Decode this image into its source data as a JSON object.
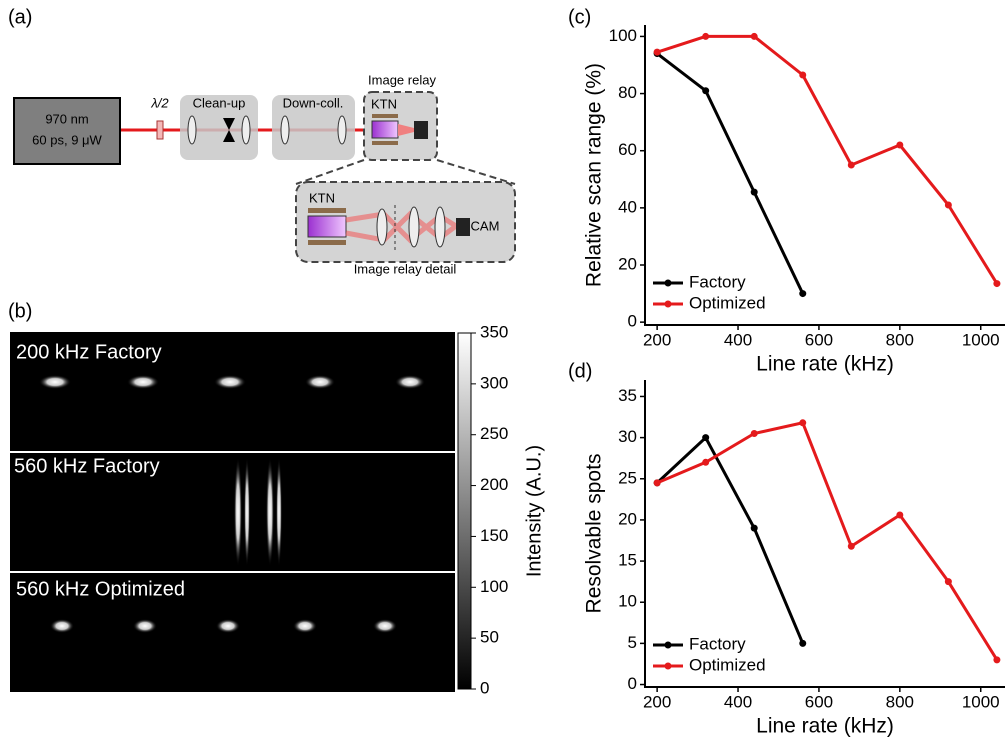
{
  "panel_labels": [
    "(a)",
    "(b)",
    "(c)",
    "(d)"
  ],
  "diagram": {
    "source": [
      "970 nm",
      "60 ps, 9 μW"
    ],
    "waveplate": "λ/2",
    "cleanup": "Clean-up",
    "downcoll": "Down-coll.",
    "relay": "Image relay",
    "ktn": "KTN",
    "detail_ktn": "KTN",
    "cam": "CAM",
    "detail": "Image relay detail"
  },
  "images": {
    "panels": [
      "200 kHz Factory",
      "560 kHz Factory",
      "560 kHz Optimized"
    ],
    "colorbar": {
      "label": "Intensity (A.U.)",
      "lim": [
        0,
        350
      ],
      "ticks": [
        0,
        50,
        100,
        150,
        200,
        250,
        300,
        350
      ]
    }
  },
  "chart_data": [
    {
      "type": "line",
      "x_label": "Line rate (kHz)",
      "y_label": "Relative scan range (%)",
      "legend": "lower left",
      "xlim": [
        170,
        1060
      ],
      "ylim": [
        -1,
        104
      ],
      "xticks": [
        200,
        400,
        600,
        800,
        1000
      ],
      "yticks": [
        0,
        20,
        40,
        60,
        80,
        100
      ],
      "series": [
        {
          "name": "Factory",
          "color": "#000000",
          "x": [
            200,
            320,
            440,
            560
          ],
          "values": [
            94,
            81,
            45.5,
            10
          ]
        },
        {
          "name": "Optimized",
          "color": "#e41a1c",
          "x": [
            200,
            320,
            440,
            560,
            680,
            800,
            920,
            1040
          ],
          "values": [
            94.5,
            100,
            100,
            86.5,
            55,
            62,
            41,
            13.5
          ]
        }
      ]
    },
    {
      "type": "line",
      "x_label": "Line rate (kHz)",
      "y_label": "Resolvable spots",
      "legend": "lower left",
      "xlim": [
        170,
        1060
      ],
      "ylim": [
        -0.3,
        37
      ],
      "xticks": [
        200,
        400,
        600,
        800,
        1000
      ],
      "yticks": [
        0,
        5,
        10,
        15,
        20,
        25,
        30,
        35
      ],
      "series": [
        {
          "name": "Factory",
          "color": "#000000",
          "x": [
            200,
            320,
            440,
            560
          ],
          "values": [
            24.5,
            30,
            19,
            5
          ]
        },
        {
          "name": "Optimized",
          "color": "#e41a1c",
          "x": [
            200,
            320,
            440,
            560,
            680,
            800,
            920,
            1040
          ],
          "values": [
            24.5,
            27,
            30.5,
            31.8,
            16.8,
            20.6,
            12.5,
            3
          ]
        }
      ]
    }
  ]
}
